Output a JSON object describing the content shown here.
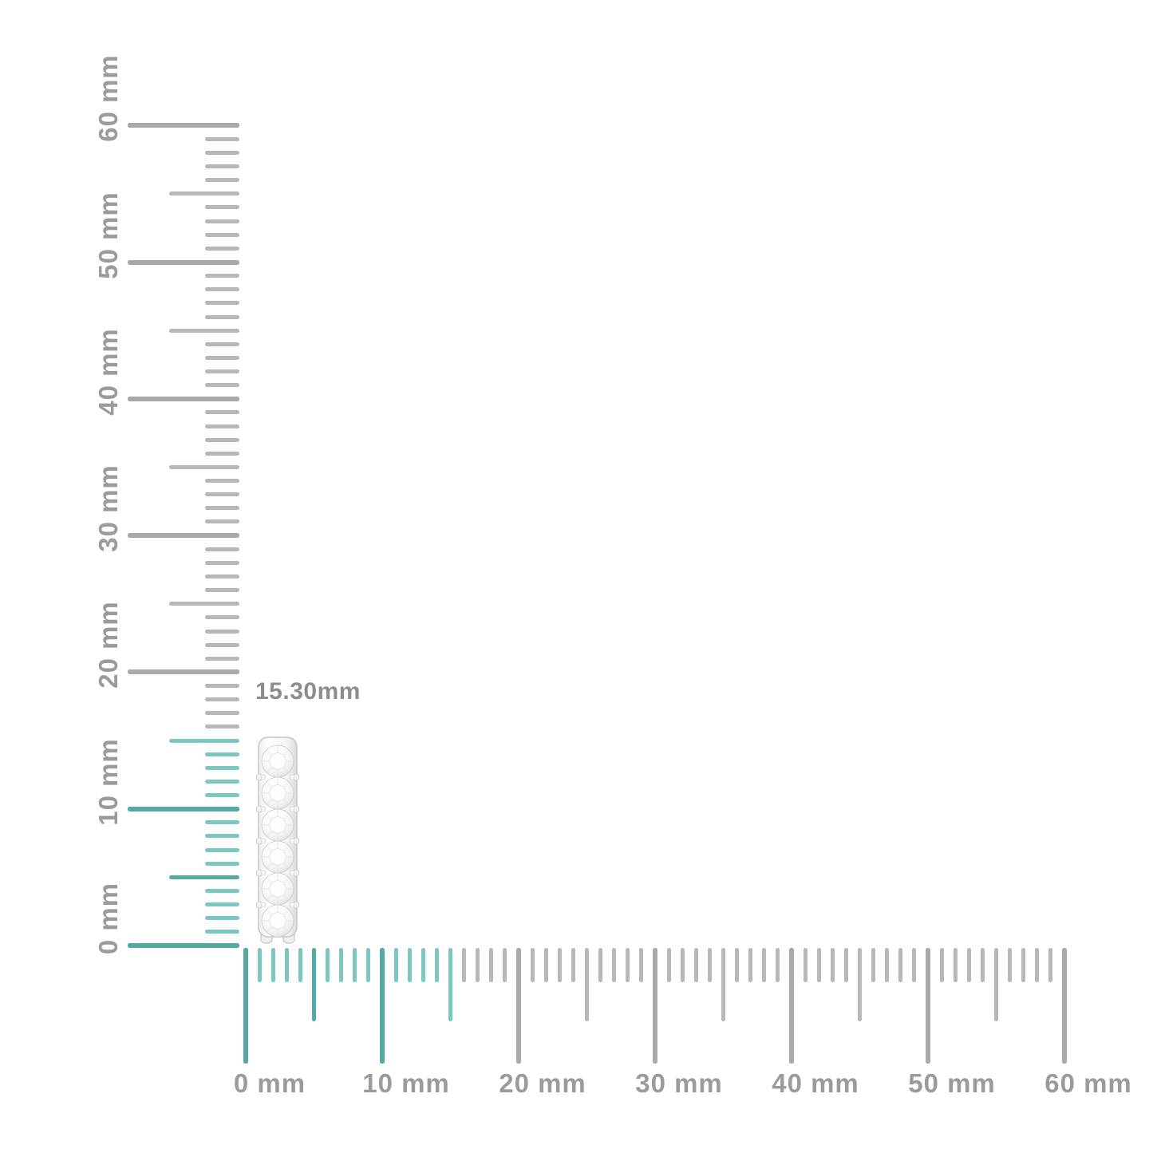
{
  "image": {
    "description": "Product measurement image of a diamond hoop earring shown against vertical and horizontal millimeter rulers",
    "background": "#ffffff"
  },
  "measurement": {
    "label": "15.30mm",
    "value_mm": 15.3
  },
  "product": {
    "name": "diamond hoop earring (side view)",
    "stone_count": 6,
    "metal_color": "white"
  },
  "rulers": {
    "unit": "mm",
    "min_mm": 0,
    "max_mm": 60,
    "tick_every_mm": 1,
    "medium_tick_every_mm": 5,
    "major_tick_every_mm": 10,
    "highlight_until_mm": 15,
    "vertical": {
      "orientation": "vertical",
      "labels": [
        "0 mm",
        "10 mm",
        "20 mm",
        "30 mm",
        "40 mm",
        "50 mm",
        "60 mm"
      ]
    },
    "horizontal": {
      "orientation": "horizontal",
      "labels": [
        "0 mm",
        "10 mm",
        "20 mm",
        "30 mm",
        "40 mm",
        "50 mm",
        "60 mm"
      ]
    }
  },
  "colors": {
    "teal_major": "#54a9a4",
    "teal_minor": "#7cc6c2",
    "gray_major": "#a9a9a9",
    "gray_minor": "#b7b7b7",
    "label_text": "#9b9b9b",
    "measurement_text": "#8d8d8d"
  }
}
